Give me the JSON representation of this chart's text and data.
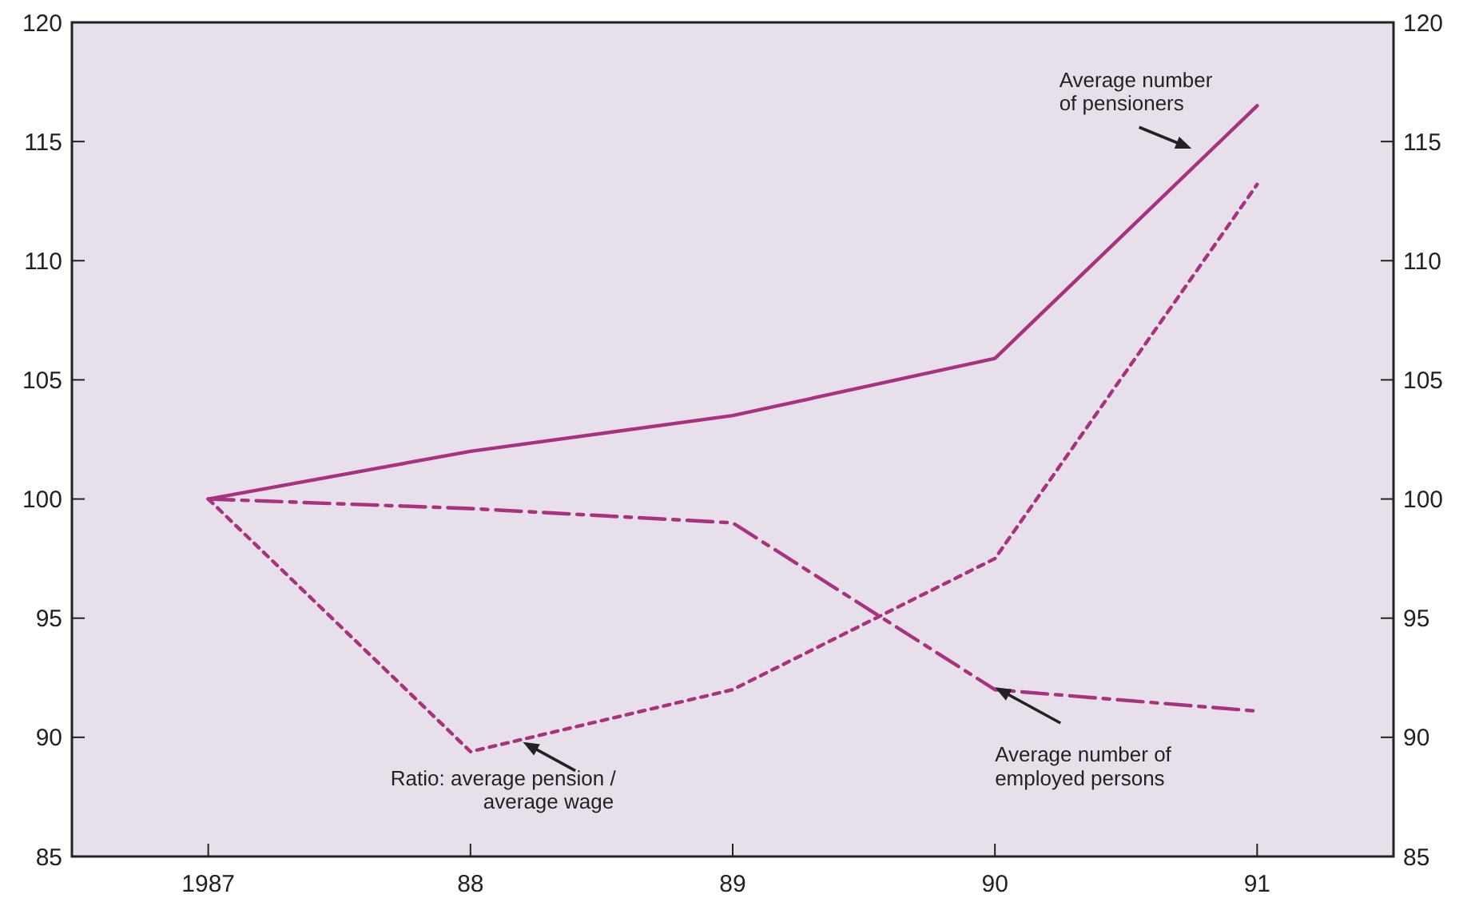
{
  "chart_data": {
    "type": "line",
    "categories": [
      "1987",
      "88",
      "89",
      "90",
      "91"
    ],
    "ylim": [
      85,
      120
    ],
    "yticks": [
      85,
      90,
      95,
      100,
      105,
      110,
      115,
      120
    ],
    "y2lim": [
      85,
      120
    ],
    "y2ticks": [
      85,
      90,
      95,
      100,
      105,
      110,
      115,
      120
    ],
    "grid": false,
    "series": [
      {
        "name": "Average number of pensioners",
        "color": "#a8327e",
        "line_style": "solid",
        "values": [
          100,
          102,
          103.5,
          105.9,
          116.5
        ]
      },
      {
        "name": "Average number of employed persons",
        "color": "#a8327e",
        "line_style": "dashed",
        "values": [
          100,
          99.6,
          99,
          92,
          91.1
        ]
      },
      {
        "name": "Ratio:  average pension / average wage",
        "color": "#a8327e",
        "line_style": "dotted",
        "values": [
          100,
          89.4,
          92,
          97.5,
          113.2
        ]
      }
    ]
  }
}
